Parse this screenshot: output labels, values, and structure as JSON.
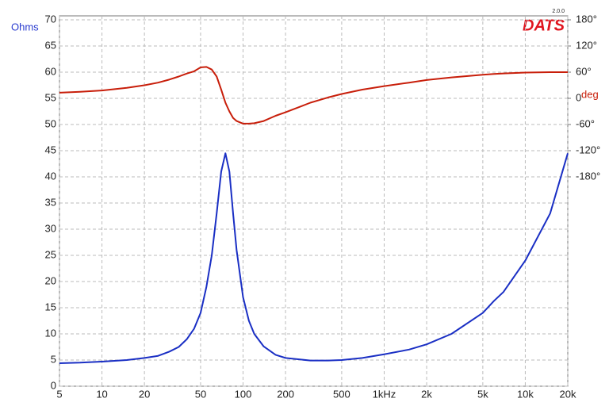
{
  "chart_data": {
    "type": "line",
    "logo": "DATS",
    "logo_version": "2.0.0",
    "ylabel": "Ohms",
    "y2label": "deg",
    "xscale": "log",
    "grid": true,
    "x": [
      5,
      7,
      10,
      15,
      20,
      25,
      30,
      35,
      40,
      45,
      50,
      55,
      60,
      65,
      70,
      75,
      80,
      85,
      90,
      100,
      110,
      120,
      140,
      170,
      200,
      300,
      400,
      500,
      700,
      1000,
      1500,
      2000,
      3000,
      5000,
      6000,
      7000,
      10000,
      15000,
      20000
    ],
    "series": [
      {
        "color": "#1a2fc4",
        "values": [
          4.4,
          4.5,
          4.7,
          5.0,
          5.4,
          5.8,
          6.6,
          7.5,
          9,
          11,
          14,
          19,
          25,
          33,
          41,
          44.5,
          41,
          33,
          26,
          17,
          12.5,
          10,
          7.6,
          6.0,
          5.4,
          4.9,
          4.9,
          5.0,
          5.4,
          6.1,
          7.0,
          8.0,
          10.0,
          14,
          16.3,
          18,
          24,
          33,
          44.5
        ]
      },
      {
        "color": "#c81e0a",
        "axis": "y2",
        "values": [
          13,
          15,
          18,
          24,
          30,
          36,
          43,
          50,
          57,
          62,
          71,
          72,
          66,
          50,
          20,
          -10,
          -30,
          -45,
          -52,
          -58,
          -58,
          -57,
          -52,
          -40,
          -32,
          -10,
          2,
          10,
          20,
          28,
          36,
          42,
          48,
          54,
          56,
          57,
          59,
          60,
          60
        ]
      }
    ],
    "xlim": [
      5,
      20000
    ],
    "xticks": [
      5,
      10,
      20,
      50,
      100,
      200,
      500,
      {
        "value": 1000,
        "label": "1kHz"
      },
      {
        "value": 2000,
        "label": "2k"
      },
      {
        "value": 5000,
        "label": "5k"
      },
      {
        "value": 10000,
        "label": "10k"
      },
      {
        "value": 20000,
        "label": "20k"
      }
    ],
    "ylim": [
      0,
      70
    ],
    "yticks": [
      0,
      5,
      10,
      15,
      20,
      25,
      30,
      35,
      40,
      45,
      50,
      55,
      60,
      65,
      70
    ],
    "y2lim": [
      -660,
      180
    ],
    "y2ticks": [
      {
        "value": 180,
        "label": "180°"
      },
      {
        "value": 120,
        "label": "120°"
      },
      {
        "value": 60,
        "label": "60°"
      },
      0,
      {
        "value": -60,
        "label": "-60°"
      },
      {
        "value": -120,
        "label": "-120°"
      },
      {
        "value": -180,
        "label": "-180°"
      }
    ]
  }
}
